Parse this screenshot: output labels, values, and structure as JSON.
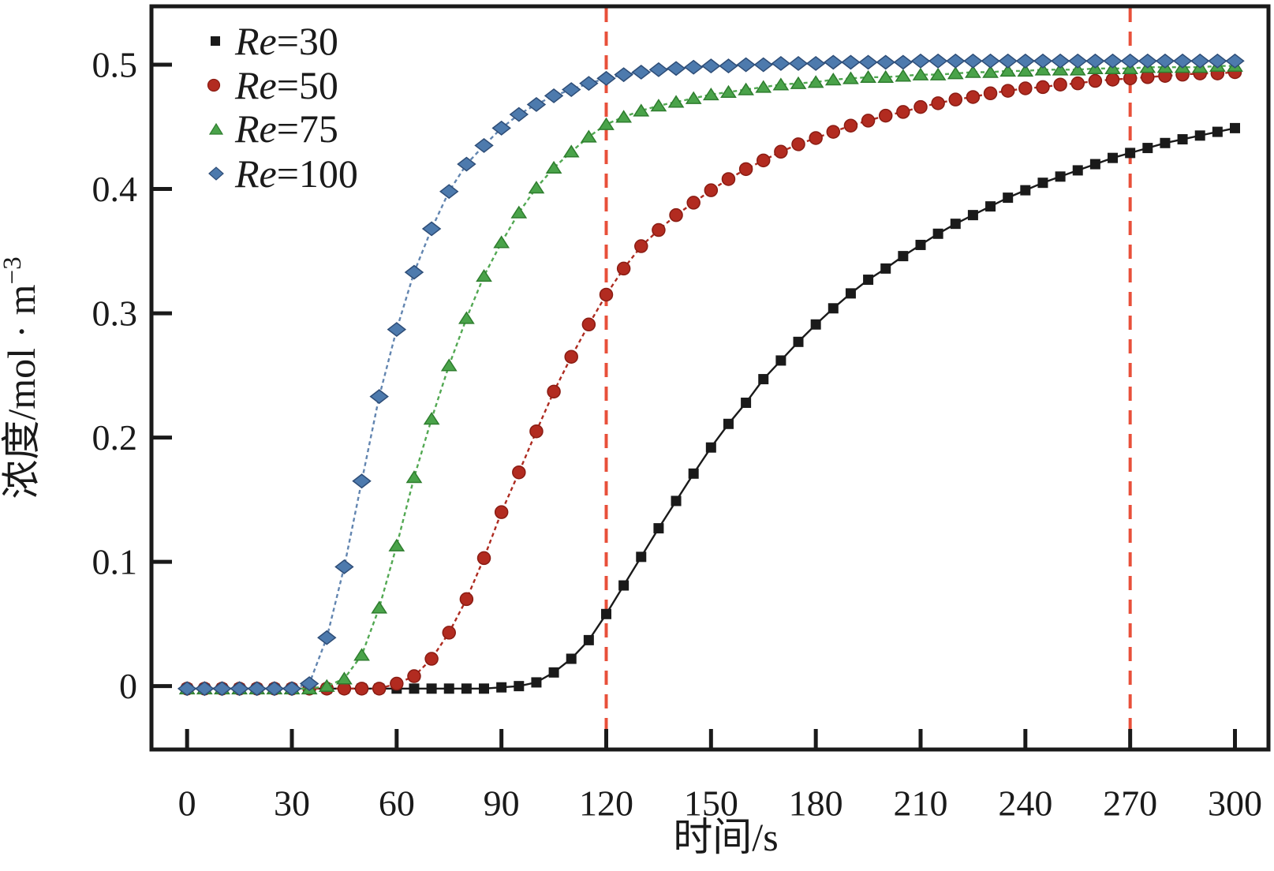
{
  "figure": {
    "background": "#ffffff",
    "legend": {
      "position": "top-left",
      "entries": [
        {
          "italic": "Re",
          "rest": "=30",
          "marker": "square",
          "color": "#1a1a1a"
        },
        {
          "italic": "Re",
          "rest": "=50",
          "marker": "circle",
          "color": "#b22b20"
        },
        {
          "italic": "Re",
          "rest": "=75",
          "marker": "triangle",
          "color": "#4aa34a"
        },
        {
          "italic": "Re",
          "rest": "=100",
          "marker": "diamond",
          "color": "#4d7aad"
        }
      ]
    }
  },
  "chart_data": {
    "type": "line",
    "title": "",
    "xlabel": "时间/s",
    "ylabel": "浓度/mol·m−3",
    "ylabel_main": "浓度/mol · m",
    "ylabel_sup": "−3",
    "xlim": [
      -10.2,
      309.6
    ],
    "ylim": [
      -0.051,
      0.547
    ],
    "xticks": [
      0,
      30,
      60,
      90,
      120,
      150,
      180,
      210,
      240,
      270,
      300
    ],
    "yticks": [
      0,
      0.1,
      0.2,
      0.3,
      0.4,
      0.5
    ],
    "ytick_labels": [
      "0",
      "0.1",
      "0.2",
      "0.3",
      "0.4",
      "0.5"
    ],
    "grid": false,
    "legend_position": "top-left",
    "reference_lines": {
      "color": "#e8503a",
      "style": "dashed",
      "x_values": [
        120,
        270
      ]
    },
    "axis_color": "#1a1a1a",
    "x": [
      0,
      5,
      10,
      15,
      20,
      25,
      30,
      35,
      40,
      45,
      50,
      55,
      60,
      65,
      70,
      75,
      80,
      85,
      90,
      95,
      100,
      105,
      110,
      115,
      120,
      125,
      130,
      135,
      140,
      145,
      150,
      155,
      160,
      165,
      170,
      175,
      180,
      185,
      190,
      195,
      200,
      205,
      210,
      215,
      220,
      225,
      230,
      235,
      240,
      245,
      250,
      255,
      260,
      265,
      270,
      275,
      280,
      285,
      290,
      295,
      300
    ],
    "series": [
      {
        "name": "Re=30",
        "marker": "square",
        "line_style": "solid",
        "color": "#1a1a1a",
        "edge_color": "#000000",
        "line_color": "#1a1a1a",
        "values": [
          -0.002,
          -0.002,
          -0.002,
          -0.002,
          -0.002,
          -0.002,
          -0.002,
          -0.002,
          -0.002,
          -0.002,
          -0.002,
          -0.002,
          -0.002,
          -0.002,
          -0.002,
          -0.002,
          -0.002,
          -0.002,
          -0.001,
          0.0,
          0.003,
          0.011,
          0.022,
          0.037,
          0.058,
          0.081,
          0.104,
          0.127,
          0.149,
          0.171,
          0.192,
          0.211,
          0.228,
          0.247,
          0.262,
          0.277,
          0.291,
          0.304,
          0.316,
          0.327,
          0.336,
          0.346,
          0.355,
          0.364,
          0.372,
          0.379,
          0.386,
          0.393,
          0.399,
          0.405,
          0.41,
          0.415,
          0.42,
          0.425,
          0.429,
          0.433,
          0.437,
          0.44,
          0.443,
          0.446,
          0.449
        ]
      },
      {
        "name": "Re=50",
        "marker": "circle",
        "line_style": "dashed",
        "color": "#b22b20",
        "edge_color": "#8a1c13",
        "line_color": "#ad2a1f",
        "values": [
          -0.002,
          -0.002,
          -0.002,
          -0.002,
          -0.002,
          -0.002,
          -0.002,
          -0.002,
          -0.002,
          -0.002,
          -0.002,
          -0.002,
          0.002,
          0.008,
          0.022,
          0.043,
          0.07,
          0.103,
          0.14,
          0.172,
          0.205,
          0.237,
          0.265,
          0.291,
          0.315,
          0.336,
          0.354,
          0.367,
          0.379,
          0.389,
          0.399,
          0.408,
          0.416,
          0.423,
          0.43,
          0.436,
          0.441,
          0.446,
          0.451,
          0.455,
          0.459,
          0.462,
          0.466,
          0.469,
          0.472,
          0.474,
          0.477,
          0.479,
          0.481,
          0.482,
          0.484,
          0.485,
          0.487,
          0.488,
          0.489,
          0.49,
          0.491,
          0.492,
          0.493,
          0.493,
          0.494
        ]
      },
      {
        "name": "Re=75",
        "marker": "triangle",
        "line_style": "dashed",
        "color": "#4aa34a",
        "edge_color": "#2e7d2e",
        "line_color": "#52a852",
        "values": [
          -0.002,
          -0.002,
          -0.002,
          -0.002,
          -0.002,
          -0.002,
          -0.002,
          -0.002,
          0.0,
          0.006,
          0.025,
          0.063,
          0.113,
          0.168,
          0.215,
          0.258,
          0.296,
          0.33,
          0.357,
          0.381,
          0.401,
          0.417,
          0.43,
          0.442,
          0.452,
          0.458,
          0.463,
          0.467,
          0.47,
          0.473,
          0.476,
          0.478,
          0.48,
          0.482,
          0.484,
          0.485,
          0.486,
          0.488,
          0.489,
          0.49,
          0.49,
          0.491,
          0.492,
          0.492,
          0.493,
          0.494,
          0.494,
          0.495,
          0.495,
          0.496,
          0.496,
          0.496,
          0.497,
          0.497,
          0.497,
          0.498,
          0.498,
          0.498,
          0.498,
          0.499,
          0.499
        ]
      },
      {
        "name": "Re=100",
        "marker": "diamond",
        "line_style": "dashed",
        "color": "#4d7aad",
        "edge_color": "#2e4d77",
        "line_color": "#6285b0",
        "values": [
          -0.002,
          -0.002,
          -0.002,
          -0.002,
          -0.002,
          -0.002,
          -0.002,
          0.002,
          0.039,
          0.096,
          0.165,
          0.233,
          0.287,
          0.333,
          0.368,
          0.398,
          0.42,
          0.435,
          0.449,
          0.46,
          0.468,
          0.475,
          0.48,
          0.485,
          0.489,
          0.492,
          0.494,
          0.496,
          0.497,
          0.498,
          0.499,
          0.499,
          0.5,
          0.5,
          0.501,
          0.501,
          0.501,
          0.502,
          0.502,
          0.502,
          0.502,
          0.502,
          0.503,
          0.503,
          0.503,
          0.503,
          0.503,
          0.503,
          0.503,
          0.503,
          0.503,
          0.503,
          0.503,
          0.503,
          0.503,
          0.503,
          0.503,
          0.503,
          0.503,
          0.503,
          0.503
        ]
      }
    ]
  }
}
